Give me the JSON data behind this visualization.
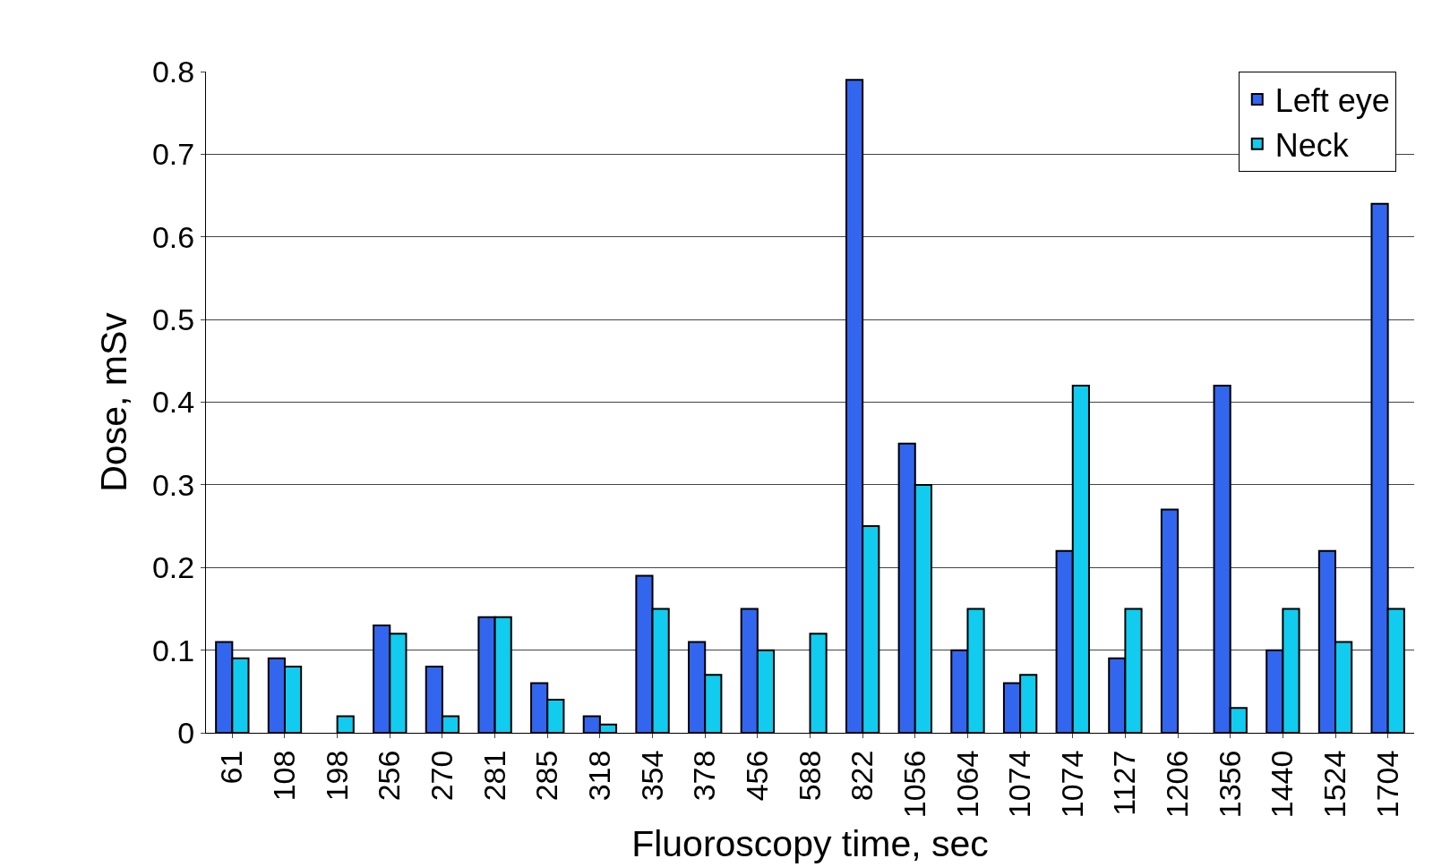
{
  "chart_data": {
    "type": "bar",
    "xlabel": "Fluoroscopy time, sec",
    "ylabel": "Dose, mSv",
    "categories": [
      "61",
      "108",
      "198",
      "256",
      "270",
      "281",
      "285",
      "318",
      "354",
      "378",
      "456",
      "588",
      "822",
      "1056",
      "1064",
      "1074",
      "1074",
      "1127",
      "1206",
      "1356",
      "1440",
      "1524",
      "1704"
    ],
    "series": [
      {
        "name": "Left eye",
        "color": "#3366ee",
        "values": [
          0.11,
          0.09,
          null,
          0.13,
          0.08,
          0.14,
          0.06,
          0.02,
          0.19,
          0.11,
          0.15,
          null,
          0.79,
          0.35,
          0.1,
          0.06,
          0.22,
          0.09,
          0.27,
          0.42,
          0.1,
          0.22,
          0.64
        ]
      },
      {
        "name": "Neck",
        "color": "#11ccee",
        "values": [
          0.09,
          0.08,
          0.02,
          0.12,
          0.02,
          0.14,
          0.04,
          0.01,
          0.15,
          0.07,
          0.1,
          0.12,
          0.25,
          0.3,
          0.15,
          0.07,
          0.42,
          0.15,
          null,
          0.03,
          0.15,
          0.11,
          0.15
        ]
      }
    ],
    "ylim": [
      0,
      0.8
    ],
    "yticks": [
      {
        "value": 0,
        "label": "0"
      },
      0.1,
      0.2,
      0.3,
      0.4,
      0.5,
      0.6,
      0.7,
      0.8
    ],
    "grid": "y",
    "legend": "top right"
  }
}
